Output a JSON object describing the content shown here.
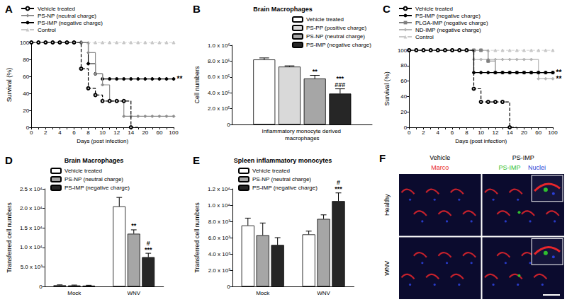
{
  "chart_data": [
    {
      "panel": "A",
      "type": "line",
      "xlabel": "Days (post infection)",
      "ylabel": "Survival (%)",
      "categories": [
        "0",
        null,
        "2",
        null,
        "4",
        null,
        "6",
        null,
        "8",
        null,
        "10",
        null,
        "12",
        null,
        "14",
        null,
        "20",
        null,
        "60",
        null,
        "100"
      ],
      "ylim": [
        0,
        100
      ],
      "yticks": [
        0,
        20,
        40,
        60,
        80,
        100
      ],
      "grid": false,
      "legend": "top-left",
      "series": [
        {
          "name": "Vehicle treated",
          "color": "#000000",
          "marker": "circle-open",
          "line_style": "dashed",
          "values": [
            100,
            100,
            100,
            100,
            100,
            100,
            100,
            69,
            46,
            38,
            31,
            31,
            31,
            31,
            0,
            null,
            null,
            null,
            null,
            null,
            null
          ]
        },
        {
          "name": "PS-NP (neutral charge)",
          "color": "#8c8c8c",
          "marker": "diamond",
          "line_style": "solid",
          "values": [
            100,
            100,
            100,
            100,
            100,
            100,
            100,
            100,
            88,
            63,
            50,
            31,
            31,
            13,
            13,
            13,
            13,
            13,
            13,
            13,
            13
          ]
        },
        {
          "name": "PS-IMP (negative charge)",
          "color": "#000000",
          "marker": "circle",
          "line_style": "solid",
          "values": [
            100,
            100,
            100,
            100,
            100,
            100,
            100,
            100,
            75,
            63,
            57,
            57,
            57,
            57,
            57,
            57,
            57,
            57,
            57,
            57,
            57
          ]
        },
        {
          "name": "Control",
          "color": "#c8c8c8",
          "marker": "triangle",
          "line_style": "dashed",
          "values": [
            100,
            100,
            100,
            100,
            100,
            100,
            100,
            100,
            100,
            100,
            100,
            100,
            100,
            100,
            100,
            100,
            100,
            100,
            100,
            100,
            100
          ]
        }
      ],
      "annotations": [
        {
          "series": "PS-IMP (negative charge)",
          "text": "**"
        }
      ]
    },
    {
      "panel": "B",
      "type": "bar",
      "title": "Brain Macrophages",
      "ylabel": "Cell numbers",
      "categories": [
        "Inflammatory monocyte derived macrophages"
      ],
      "ylim": [
        0,
        1000000
      ],
      "yticks": [
        0,
        {
          "value": 200000,
          "label": "2.0 x 10⁵"
        },
        {
          "value": 400000,
          "label": "4.0 x 10⁵"
        },
        {
          "value": 600000,
          "label": "6.0 x 10⁵"
        },
        {
          "value": 800000,
          "label": "8.0 x 10⁵"
        },
        {
          "value": 1000000,
          "label": "1.0 x 10⁶"
        }
      ],
      "grid": false,
      "legend": "top-right",
      "series": [
        {
          "name": "Vehicle treated",
          "color": "#ffffff",
          "values": [
            820000
          ],
          "errors": [
            20000
          ]
        },
        {
          "name": "PS-PP (positive charge)",
          "color": "#d9d9d9",
          "values": [
            730000
          ],
          "errors": [
            10000
          ]
        },
        {
          "name": "PS-NP (neutral charge)",
          "color": "#a6a6a6",
          "values": [
            580000
          ],
          "errors": [
            40000
          ]
        },
        {
          "name": "PS-IMP (negative charge)",
          "color": "#262626",
          "values": [
            390000
          ],
          "errors": [
            60000
          ]
        }
      ],
      "annotations": [
        {
          "category": "Inflammatory monocyte derived macrophages",
          "series": "PS-NP (neutral charge)",
          "text": [
            "**"
          ]
        },
        {
          "category": "Inflammatory monocyte derived macrophages",
          "series": "PS-IMP (negative charge)",
          "text": [
            "***",
            "###"
          ]
        }
      ]
    },
    {
      "panel": "C",
      "type": "line",
      "xlabel": "Days (post infection)",
      "ylabel": "Survival (%)",
      "categories": [
        "0",
        null,
        "2",
        null,
        "4",
        null,
        "6",
        null,
        "8",
        null,
        "10",
        null,
        "12",
        null,
        "14",
        null,
        "20",
        null,
        "60",
        null,
        "100"
      ],
      "ylim": [
        0,
        100
      ],
      "yticks": [
        0,
        20,
        40,
        60,
        80,
        100
      ],
      "grid": false,
      "legend": "top-left",
      "series": [
        {
          "name": "Vehicle treated",
          "color": "#000000",
          "marker": "circle-open",
          "line_style": "dashed",
          "values": [
            100,
            100,
            100,
            100,
            100,
            100,
            100,
            100,
            100,
            50,
            33,
            33,
            33,
            33,
            0,
            null,
            null,
            null,
            null,
            null,
            null
          ]
        },
        {
          "name": "PS-IMP (negative charge)",
          "color": "#000000",
          "marker": "circle",
          "line_style": "solid",
          "values": [
            100,
            100,
            100,
            100,
            100,
            100,
            100,
            100,
            100,
            71,
            71,
            71,
            71,
            71,
            71,
            71,
            71,
            71,
            71,
            71,
            71
          ]
        },
        {
          "name": "PLGA-IMP (negative charge)",
          "color": "#808080",
          "marker": "square",
          "line_style": "solid",
          "values": [
            100,
            100,
            100,
            100,
            100,
            100,
            100,
            100,
            100,
            100,
            100,
            86,
            71,
            71,
            71,
            71,
            71,
            71,
            71,
            71,
            71
          ]
        },
        {
          "name": "ND-IMP (negative charge)",
          "color": "#b4b4b4",
          "marker": "diamond",
          "line_style": "solid",
          "values": [
            100,
            100,
            100,
            100,
            100,
            100,
            100,
            100,
            100,
            88,
            88,
            88,
            88,
            88,
            88,
            88,
            88,
            88,
            63,
            63,
            63
          ]
        },
        {
          "name": "Control",
          "color": "#c8c8c8",
          "marker": "triangle",
          "line_style": "dashed",
          "values": [
            100,
            100,
            100,
            100,
            100,
            100,
            100,
            100,
            100,
            100,
            100,
            100,
            100,
            100,
            100,
            100,
            100,
            100,
            100,
            100,
            100
          ]
        }
      ],
      "annotations": [
        {
          "series": "PS-IMP (negative charge)",
          "text": "**"
        },
        {
          "series": "ND-IMP (negative charge)",
          "text": "**"
        }
      ]
    },
    {
      "panel": "D",
      "type": "bar",
      "title": "Brain Macrophages",
      "ylabel": "Transferred cell numbers",
      "categories": [
        "Mock",
        "WNV"
      ],
      "ylim": [
        0,
        25000
      ],
      "yticks": [
        0,
        {
          "value": 5000,
          "label": "5.0 x 10³"
        },
        {
          "value": 10000,
          "label": "1.0 x 10⁴"
        },
        {
          "value": 15000,
          "label": "1.5 x 10⁴"
        },
        {
          "value": 20000,
          "label": "2.0 x 10⁴"
        },
        {
          "value": 25000,
          "label": "2.5 x 10⁴"
        }
      ],
      "grid": false,
      "legend": "top-left",
      "series": [
        {
          "name": "Vehicle treated",
          "color": "#ffffff",
          "values": [
            300,
            20500
          ],
          "errors": [
            100,
            2300
          ]
        },
        {
          "name": "PS-NP (neutral charge)",
          "color": "#a6a6a6",
          "values": [
            250,
            13500
          ],
          "errors": [
            100,
            1000
          ]
        },
        {
          "name": "PS-IMP (negative charge)",
          "color": "#262626",
          "values": [
            200,
            7500
          ],
          "errors": [
            100,
            1000
          ]
        }
      ],
      "annotations": [
        {
          "category": "WNV",
          "series": "PS-NP (neutral charge)",
          "text": [
            "**"
          ]
        },
        {
          "category": "WNV",
          "series": "PS-IMP (negative charge)",
          "text": [
            "#",
            "***"
          ]
        }
      ]
    },
    {
      "panel": "E",
      "type": "bar",
      "title": "Spleen inflammatory monocytes",
      "ylabel": "Transferred cell numbers",
      "categories": [
        "Mock",
        "WNV"
      ],
      "ylim": [
        0,
        12000
      ],
      "yticks": [
        0,
        {
          "value": 2000,
          "label": "2.0 x 10³"
        },
        {
          "value": 4000,
          "label": "4.0 x 10³"
        },
        {
          "value": 6000,
          "label": "6.0 x 10³"
        },
        {
          "value": 8000,
          "label": "8.0 x 10³"
        },
        {
          "value": 10000,
          "label": "1.0 x 10⁴"
        },
        {
          "value": 12000,
          "label": "1.2 x 10⁴"
        }
      ],
      "grid": false,
      "legend": "top-left",
      "series": [
        {
          "name": "Vehicle treated",
          "color": "#ffffff",
          "values": [
            7500,
            6400
          ],
          "errors": [
            900,
            400
          ]
        },
        {
          "name": "PS-NP (neutral charge)",
          "color": "#a6a6a6",
          "values": [
            6300,
            8300
          ],
          "errors": [
            1500,
            500
          ]
        },
        {
          "name": "PS-IMP (negative charge)",
          "color": "#262626",
          "values": [
            5100,
            10500
          ],
          "errors": [
            900,
            1000
          ]
        }
      ],
      "annotations": [
        {
          "category": "WNV",
          "series": "PS-IMP (negative charge)",
          "text": [
            "#",
            "***"
          ]
        }
      ]
    }
  ],
  "image_panel": {
    "panel": "F",
    "columns": [
      "Vehicle",
      "PS-IMP"
    ],
    "rows": [
      "Healthy",
      "WNV"
    ],
    "channels": [
      {
        "name": "Marco",
        "color": "#e8262b"
      },
      {
        "name": "PS-IMP",
        "color": "#2fbf2f"
      },
      {
        "name": "Nuclei",
        "color": "#2b3fd6"
      }
    ]
  }
}
